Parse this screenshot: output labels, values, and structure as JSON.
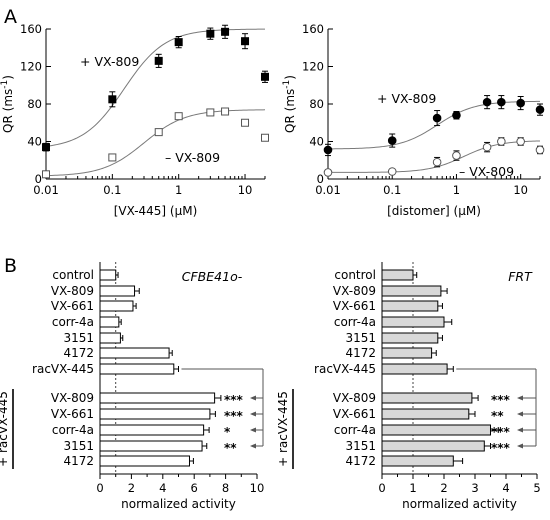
{
  "panels": {
    "a": "A",
    "b": "B"
  },
  "chart_data": [
    {
      "type": "scatter",
      "ylabel_main": "QR (ms",
      "ylabel_exp": "-1",
      "ylabel_close": ")",
      "xlabel": "[VX-445] (µM)",
      "xscale": "log",
      "xlim": [
        0.01,
        20
      ],
      "ylim": [
        0,
        160
      ],
      "xticks": [
        0.01,
        0.1,
        1,
        10
      ],
      "xtick_labels": [
        "0.01",
        "0.1",
        "1",
        "10"
      ],
      "yticks": [
        0,
        40,
        80,
        120,
        160
      ],
      "ytick_labels": [
        "0",
        "40",
        "80",
        "120",
        "160"
      ],
      "series": [
        {
          "name": "+ VX-809",
          "marker": "filled-square",
          "x": [
            0.01,
            0.1,
            0.5,
            1,
            3,
            5,
            10,
            20
          ],
          "y": [
            34,
            85,
            126,
            146,
            155,
            157,
            147,
            109
          ],
          "err": [
            4,
            8,
            7,
            6,
            6,
            7,
            8,
            6
          ],
          "fit": {
            "bottom": 32,
            "top": 160,
            "ec50": 0.15,
            "hill": 1.4
          }
        },
        {
          "name": "– VX-809",
          "marker": "open-square",
          "x": [
            0.01,
            0.1,
            0.5,
            1,
            3,
            5,
            10,
            20
          ],
          "y": [
            5,
            23,
            50,
            67,
            71,
            72,
            60,
            44
          ],
          "err": [
            0,
            0,
            0,
            0,
            0,
            0,
            0,
            0
          ],
          "fit": {
            "bottom": 3,
            "top": 74,
            "ec50": 0.3,
            "hill": 1.4
          }
        }
      ]
    },
    {
      "type": "scatter",
      "ylabel_main": "QR (ms",
      "ylabel_exp": "-1",
      "ylabel_close": ")",
      "xlabel": "[distomer] (µM)",
      "xscale": "log",
      "xlim": [
        0.01,
        20
      ],
      "ylim": [
        0,
        160
      ],
      "xticks": [
        0.01,
        0.1,
        1,
        10
      ],
      "xtick_labels": [
        "0.01",
        "0.1",
        "1",
        "10"
      ],
      "yticks": [
        0,
        40,
        80,
        120,
        160
      ],
      "ytick_labels": [
        "0",
        "40",
        "80",
        "120",
        "160"
      ],
      "series": [
        {
          "name": "+ VX-809",
          "marker": "filled-circle",
          "x": [
            0.01,
            0.1,
            0.5,
            1,
            3,
            5,
            10,
            20
          ],
          "y": [
            31,
            41,
            65,
            68,
            82,
            82,
            81,
            74
          ],
          "err": [
            6,
            7,
            8,
            4,
            7,
            7,
            7,
            6
          ],
          "fit": {
            "bottom": 32,
            "top": 83,
            "ec50": 0.5,
            "hill": 1.5
          }
        },
        {
          "name": "– VX-809",
          "marker": "open-circle",
          "x": [
            0.01,
            0.1,
            0.5,
            1,
            3,
            5,
            10,
            20
          ],
          "y": [
            7,
            8,
            18,
            25,
            34,
            40,
            40,
            31
          ],
          "err": [
            0,
            0,
            5,
            5,
            5,
            4,
            4,
            4
          ],
          "fit": {
            "bottom": 7,
            "top": 41,
            "ec50": 1.3,
            "hill": 1.6
          }
        }
      ]
    },
    {
      "type": "bar",
      "orientation": "horizontal",
      "cell_label": "CFBE41o-",
      "xlabel": "normalized activity",
      "xlim": [
        0,
        10
      ],
      "xticks": [
        0,
        2,
        4,
        6,
        8,
        10
      ],
      "xtick_labels": [
        "0",
        "2",
        "4",
        "6",
        "8",
        "10"
      ],
      "reference_line": 1,
      "bar_color": "#ffffff",
      "group_label": "+ racVX-445",
      "categories": [
        "control",
        "VX-809",
        "VX-661",
        "corr-4a",
        "3151",
        "4172",
        "racVX-445",
        "VX-809",
        "VX-661",
        "corr-4a",
        "3151",
        "4172"
      ],
      "values": [
        1.0,
        2.2,
        2.1,
        1.2,
        1.3,
        4.4,
        4.7,
        7.3,
        7.0,
        6.6,
        6.5,
        5.7
      ],
      "errors": [
        0.15,
        0.3,
        0.2,
        0.15,
        0.15,
        0.2,
        0.3,
        0.4,
        0.35,
        0.35,
        0.3,
        0.25
      ],
      "significance": [
        "",
        "",
        "",
        "",
        "",
        "",
        "",
        "***",
        "***",
        "*",
        "**",
        ""
      ]
    },
    {
      "type": "bar",
      "orientation": "horizontal",
      "cell_label": "FRT",
      "xlabel": "normalized activity",
      "xlim": [
        0,
        5
      ],
      "xticks": [
        0,
        1,
        2,
        3,
        4,
        5
      ],
      "xtick_labels": [
        "0",
        "1",
        "2",
        "3",
        "4",
        "5"
      ],
      "reference_line": 1,
      "bar_color": "#d8d8d8",
      "group_label": "+ racVX-445",
      "categories": [
        "control",
        "VX-809",
        "VX-661",
        "corr-4a",
        "3151",
        "4172",
        "racVX-445",
        "VX-809",
        "VX-661",
        "corr-4a",
        "3151",
        "4172"
      ],
      "values": [
        1.0,
        1.9,
        1.8,
        2.0,
        1.8,
        1.6,
        2.1,
        2.9,
        2.8,
        3.5,
        3.3,
        2.3
      ],
      "errors": [
        0.12,
        0.2,
        0.15,
        0.25,
        0.15,
        0.15,
        0.2,
        0.2,
        0.2,
        0.25,
        0.2,
        0.3
      ],
      "significance": [
        "",
        "",
        "",
        "",
        "",
        "",
        "",
        "***",
        "**",
        "***",
        "***",
        ""
      ]
    }
  ]
}
